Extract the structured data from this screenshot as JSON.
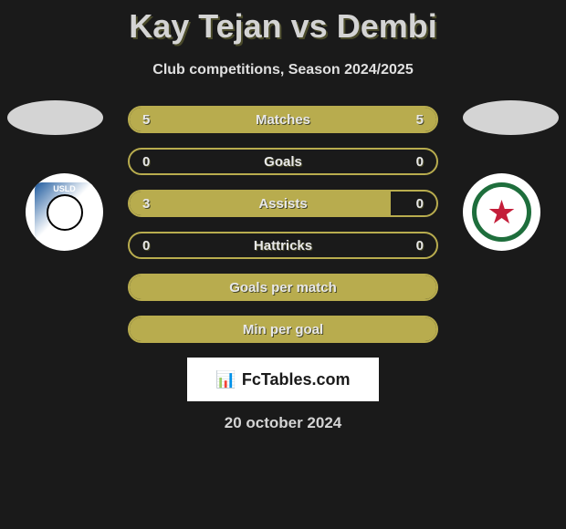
{
  "title": "Kay Tejan vs Dembi",
  "subtitle": "Club competitions, Season 2024/2025",
  "team_left": {
    "name": "USLD",
    "logo_colors": {
      "primary": "#1e5a9e",
      "secondary": "#ffffff"
    }
  },
  "team_right": {
    "name": "Red Star FC",
    "logo_colors": {
      "primary": "#1e6e3c",
      "star": "#c41e3a",
      "inner": "#ffffff"
    }
  },
  "stats": [
    {
      "label": "Matches",
      "left_value": "5",
      "right_value": "5",
      "left_fill_pct": 50,
      "right_fill_pct": 50,
      "full_fill": true
    },
    {
      "label": "Goals",
      "left_value": "0",
      "right_value": "0",
      "left_fill_pct": 0,
      "right_fill_pct": 0,
      "full_fill": false
    },
    {
      "label": "Assists",
      "left_value": "3",
      "right_value": "0",
      "left_fill_pct": 85,
      "right_fill_pct": 0,
      "full_fill": false
    },
    {
      "label": "Hattricks",
      "left_value": "0",
      "right_value": "0",
      "left_fill_pct": 0,
      "right_fill_pct": 0,
      "full_fill": false
    },
    {
      "label": "Goals per match",
      "left_value": "",
      "right_value": "",
      "left_fill_pct": 0,
      "right_fill_pct": 0,
      "full_fill": true
    },
    {
      "label": "Min per goal",
      "left_value": "",
      "right_value": "",
      "left_fill_pct": 0,
      "right_fill_pct": 0,
      "full_fill": true
    }
  ],
  "brand": "FcTables.com",
  "date": "20 october 2024",
  "colors": {
    "background": "#1a1a1a",
    "bar_fill": "#b8ac4e",
    "bar_border": "#b8ac4e",
    "title_color": "#d4d4d4",
    "text_color": "#e8e8e8",
    "text_shadow": "#4a4a2a"
  }
}
